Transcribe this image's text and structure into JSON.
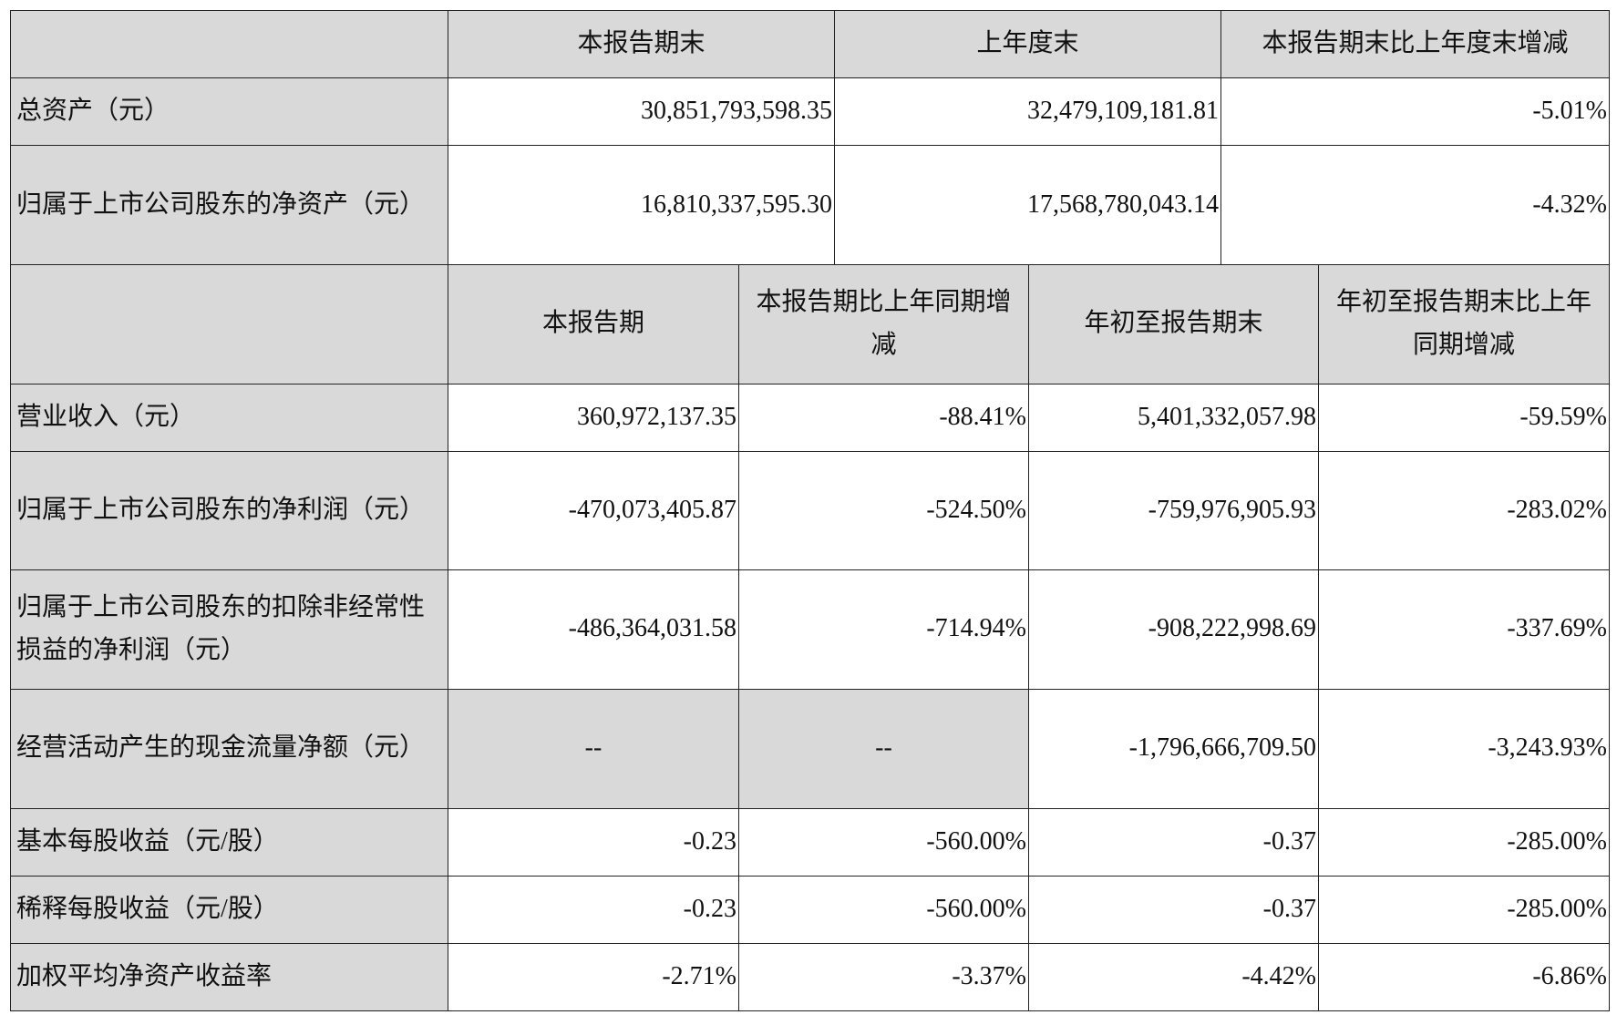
{
  "balance_table": {
    "headers": [
      "本报告期末",
      "上年度末",
      "本报告期末比上年度末增减"
    ],
    "rows": [
      {
        "label": "总资产（元）",
        "values": [
          "30,851,793,598.35",
          "32,479,109,181.81",
          "-5.01%"
        ]
      },
      {
        "label": "归属于上市公司股东的净资产（元）",
        "values": [
          "16,810,337,595.30",
          "17,568,780,043.14",
          "-4.32%"
        ]
      }
    ]
  },
  "income_table": {
    "headers": [
      "本报告期",
      "本报告期比上年同期增减",
      "年初至报告期末",
      "年初至报告期末比上年同期增减"
    ],
    "rows": [
      {
        "label": "营业收入（元）",
        "values": [
          "360,972,137.35",
          "-88.41%",
          "5,401,332,057.98",
          "-59.59%"
        ]
      },
      {
        "label": "归属于上市公司股东的净利润（元）",
        "values": [
          "-470,073,405.87",
          "-524.50%",
          "-759,976,905.93",
          "-283.02%"
        ]
      },
      {
        "label": "归属于上市公司股东的扣除非经常性损益的净利润（元）",
        "values": [
          "-486,364,031.58",
          "-714.94%",
          "-908,222,998.69",
          "-337.69%"
        ]
      },
      {
        "label": "经营活动产生的现金流量净额（元）",
        "values": [
          "--",
          "--",
          "-1,796,666,709.50",
          "-3,243.93%"
        ]
      },
      {
        "label": "基本每股收益（元/股）",
        "values": [
          "-0.23",
          "-560.00%",
          "-0.37",
          "-285.00%"
        ]
      },
      {
        "label": "稀释每股收益（元/股）",
        "values": [
          "-0.23",
          "-560.00%",
          "-0.37",
          "-285.00%"
        ]
      },
      {
        "label": "加权平均净资产收益率",
        "values": [
          "-2.71%",
          "-3.37%",
          "-4.42%",
          "-6.86%"
        ]
      }
    ]
  }
}
